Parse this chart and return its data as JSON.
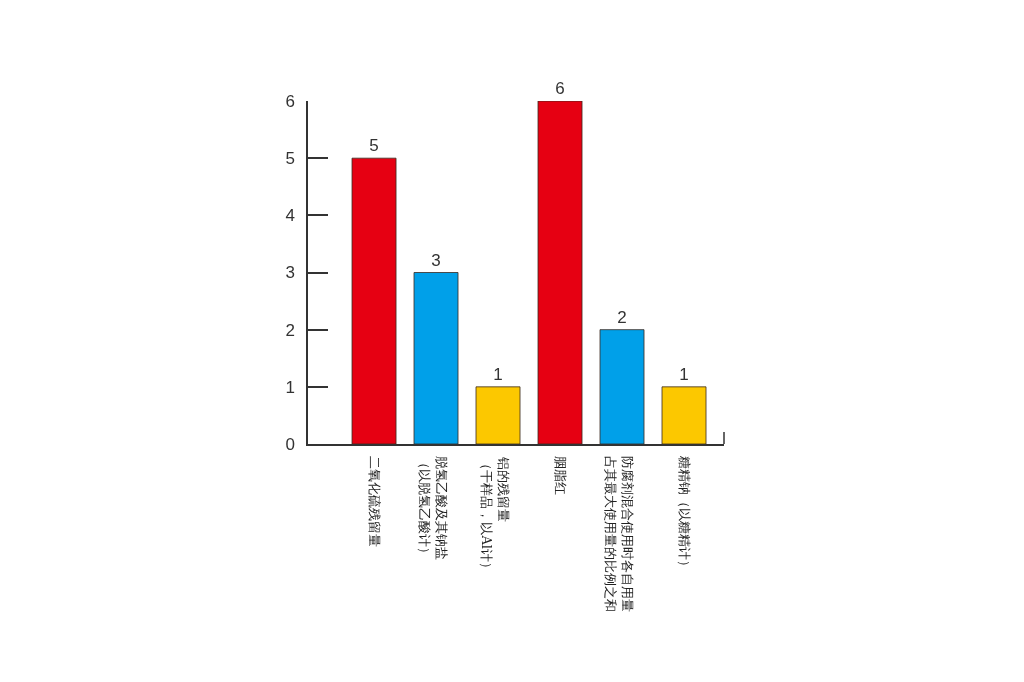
{
  "chart_data": {
    "type": "bar",
    "categories": [
      "二氧化硫残留量",
      "脱氢乙酸及其钠盐（以脱氢乙酸计）",
      "铝的残留量（干样品，以Al计）",
      "胭脂红",
      "防腐剂混合使用时各自用量占其最大使用量的比例之和",
      "糖精钠（以糖精计）"
    ],
    "values": [
      5,
      3,
      1,
      6,
      2,
      1
    ],
    "colors": [
      "#e60012",
      "#00a0e9",
      "#fcc800",
      "#e60012",
      "#00a0e9",
      "#fcc800"
    ],
    "ylim": [
      0,
      6
    ],
    "yticks": [
      0,
      1,
      2,
      3,
      4,
      5,
      6
    ],
    "data_labels": true
  }
}
